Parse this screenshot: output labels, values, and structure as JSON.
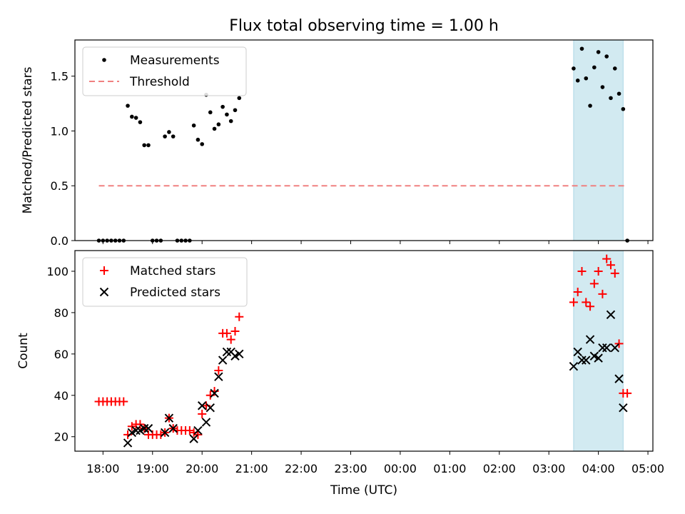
{
  "figure_title": "Flux total observing time = 1.00 h",
  "xlabel": "Time (UTC)",
  "colors": {
    "matched": "#ff0000",
    "predicted": "#000000",
    "threshold": "#f08080",
    "shade": "#add8e6"
  },
  "chart_data": [
    {
      "type": "scatter",
      "panel": "top",
      "ylabel": "Matched/Predicted stars",
      "xlim": [
        "17:26",
        "05:06"
      ],
      "ylim": [
        0,
        1.83
      ],
      "yticks": [
        "0.0",
        "0.5",
        "1.0",
        "1.5"
      ],
      "xticks": [
        "18:00",
        "19:00",
        "20:00",
        "21:00",
        "22:00",
        "23:00",
        "00:00",
        "01:00",
        "02:00",
        "03:00",
        "04:00",
        "05:00"
      ],
      "grid": false,
      "legend_position": "top-left",
      "shaded_region": [
        "03:30",
        "04:30"
      ],
      "series": [
        {
          "name": "Measurements",
          "marker": "dot",
          "points": [
            [
              "17:55",
              0
            ],
            [
              "18:00",
              0
            ],
            [
              "18:05",
              0
            ],
            [
              "18:10",
              0
            ],
            [
              "18:15",
              0
            ],
            [
              "18:20",
              0
            ],
            [
              "18:25",
              0
            ],
            [
              "18:30",
              1.23
            ],
            [
              "18:35",
              1.13
            ],
            [
              "18:40",
              1.12
            ],
            [
              "18:45",
              1.08
            ],
            [
              "18:50",
              0.87
            ],
            [
              "18:55",
              0.87
            ],
            [
              "19:00",
              0
            ],
            [
              "19:05",
              0
            ],
            [
              "19:10",
              0
            ],
            [
              "19:15",
              0.95
            ],
            [
              "19:20",
              0.99
            ],
            [
              "19:25",
              0.95
            ],
            [
              "19:30",
              0
            ],
            [
              "19:35",
              0
            ],
            [
              "19:40",
              0
            ],
            [
              "19:45",
              0
            ],
            [
              "19:50",
              1.05
            ],
            [
              "19:55",
              0.92
            ],
            [
              "20:00",
              0.88
            ],
            [
              "20:05",
              1.33
            ],
            [
              "20:10",
              1.17
            ],
            [
              "20:15",
              1.02
            ],
            [
              "20:20",
              1.06
            ],
            [
              "20:25",
              1.22
            ],
            [
              "20:30",
              1.15
            ],
            [
              "20:35",
              1.09
            ],
            [
              "20:40",
              1.19
            ],
            [
              "20:45",
              1.3
            ],
            [
              "03:30",
              1.57
            ],
            [
              "03:35",
              1.46
            ],
            [
              "03:40",
              1.75
            ],
            [
              "03:45",
              1.48
            ],
            [
              "03:50",
              1.23
            ],
            [
              "03:55",
              1.58
            ],
            [
              "04:00",
              1.72
            ],
            [
              "04:05",
              1.4
            ],
            [
              "04:10",
              1.68
            ],
            [
              "04:15",
              1.3
            ],
            [
              "04:20",
              1.57
            ],
            [
              "04:25",
              1.34
            ],
            [
              "04:30",
              1.2
            ],
            [
              "04:35",
              0
            ]
          ]
        },
        {
          "name": "Threshold",
          "line": "dashed",
          "points": [
            [
              "17:55",
              0.5
            ],
            [
              "04:35",
              0.5
            ]
          ]
        }
      ]
    },
    {
      "type": "scatter",
      "panel": "bottom",
      "ylabel": "Count",
      "xlim": [
        "17:26",
        "05:06"
      ],
      "ylim": [
        13,
        110
      ],
      "yticks": [
        "20",
        "40",
        "60",
        "80",
        "100"
      ],
      "xticks": [
        "18:00",
        "19:00",
        "20:00",
        "21:00",
        "22:00",
        "23:00",
        "00:00",
        "01:00",
        "02:00",
        "03:00",
        "04:00",
        "05:00"
      ],
      "grid": false,
      "legend_position": "top-left",
      "shaded_region": [
        "03:30",
        "04:30"
      ],
      "series": [
        {
          "name": "Matched stars",
          "marker": "plus",
          "points": [
            [
              "17:55",
              37
            ],
            [
              "18:00",
              37
            ],
            [
              "18:05",
              37
            ],
            [
              "18:10",
              37
            ],
            [
              "18:15",
              37
            ],
            [
              "18:20",
              37
            ],
            [
              "18:25",
              37
            ],
            [
              "18:30",
              21
            ],
            [
              "18:35",
              25
            ],
            [
              "18:40",
              26
            ],
            [
              "18:45",
              26
            ],
            [
              "18:50",
              24
            ],
            [
              "18:55",
              21
            ],
            [
              "19:00",
              21
            ],
            [
              "19:05",
              21
            ],
            [
              "19:10",
              21
            ],
            [
              "19:15",
              22
            ],
            [
              "19:20",
              29
            ],
            [
              "19:25",
              24
            ],
            [
              "19:30",
              23
            ],
            [
              "19:35",
              23
            ],
            [
              "19:40",
              23
            ],
            [
              "19:45",
              23
            ],
            [
              "19:50",
              22
            ],
            [
              "19:55",
              21
            ],
            [
              "20:00",
              31
            ],
            [
              "20:05",
              35
            ],
            [
              "20:10",
              40
            ],
            [
              "20:15",
              42
            ],
            [
              "20:20",
              52
            ],
            [
              "20:25",
              70
            ],
            [
              "20:30",
              70
            ],
            [
              "20:35",
              67
            ],
            [
              "20:40",
              71
            ],
            [
              "20:45",
              78
            ],
            [
              "03:30",
              85
            ],
            [
              "03:35",
              90
            ],
            [
              "03:40",
              100
            ],
            [
              "03:45",
              85
            ],
            [
              "03:50",
              83
            ],
            [
              "03:55",
              94
            ],
            [
              "04:00",
              100
            ],
            [
              "04:05",
              89
            ],
            [
              "04:10",
              106
            ],
            [
              "04:15",
              103
            ],
            [
              "04:20",
              99
            ],
            [
              "04:25",
              65
            ],
            [
              "04:30",
              41
            ],
            [
              "04:35",
              41
            ]
          ]
        },
        {
          "name": "Predicted stars",
          "marker": "x",
          "points": [
            [
              "18:30",
              17
            ],
            [
              "18:35",
              22
            ],
            [
              "18:40",
              23
            ],
            [
              "18:45",
              23
            ],
            [
              "18:50",
              24
            ],
            [
              "18:55",
              24
            ],
            [
              "19:15",
              22
            ],
            [
              "19:20",
              29
            ],
            [
              "19:25",
              24
            ],
            [
              "19:50",
              19
            ],
            [
              "19:55",
              23
            ],
            [
              "20:00",
              35
            ],
            [
              "20:05",
              27
            ],
            [
              "20:10",
              34
            ],
            [
              "20:15",
              41
            ],
            [
              "20:20",
              49
            ],
            [
              "20:25",
              57
            ],
            [
              "20:30",
              61
            ],
            [
              "20:35",
              61
            ],
            [
              "20:40",
              59
            ],
            [
              "20:45",
              60
            ],
            [
              "03:30",
              54
            ],
            [
              "03:35",
              61
            ],
            [
              "03:40",
              57
            ],
            [
              "03:45",
              57
            ],
            [
              "03:50",
              67
            ],
            [
              "03:55",
              59
            ],
            [
              "04:00",
              58
            ],
            [
              "04:05",
              63
            ],
            [
              "04:10",
              63
            ],
            [
              "04:15",
              79
            ],
            [
              "04:20",
              63
            ],
            [
              "04:25",
              48
            ],
            [
              "04:30",
              34
            ]
          ]
        }
      ]
    }
  ]
}
